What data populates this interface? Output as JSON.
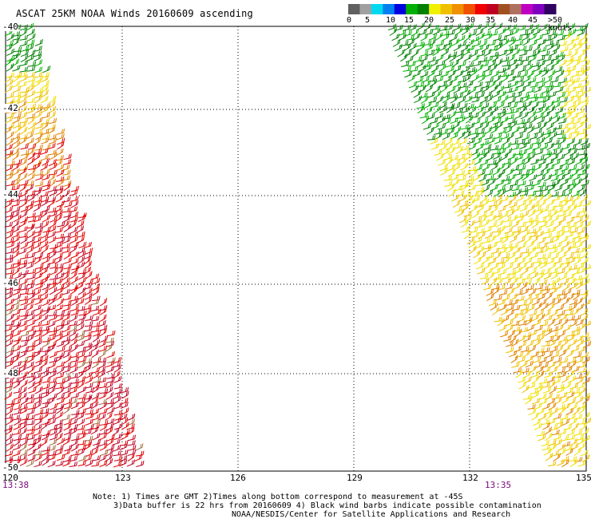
{
  "title": "ASCAT 25KM NOAA Winds 20160609 ascending",
  "legend": {
    "colors": [
      "#606060",
      "#a0a0a0",
      "#00d8f0",
      "#0080f0",
      "#0000e0",
      "#00b000",
      "#008000",
      "#f0f000",
      "#f0c000",
      "#f09000",
      "#f05000",
      "#f00000",
      "#c00020",
      "#a05020",
      "#b07060",
      "#c000c0",
      "#8000c0",
      "#300060"
    ],
    "labels": [
      "0",
      "5",
      "10",
      "15",
      "20",
      "25",
      "30",
      "35",
      "40",
      "45",
      ">50 knots"
    ]
  },
  "axes": {
    "lon_labels": [
      "120",
      "123",
      "126",
      "129",
      "132",
      "135"
    ],
    "lat_labels": [
      "-40",
      "-42",
      "-44",
      "-46",
      "-48",
      "-50"
    ]
  },
  "times": {
    "left": "13:38",
    "right": "13:35"
  },
  "notes": {
    "line1": "Note: 1) Times are GMT 2)Times along bottom correspond to measurement at -45S",
    "line2": "3)Data buffer is 22 hrs from 20160609 4) Black wind barbs indicate possible contamination",
    "line3": "NOAA/NESDIS/Center for Satellite Applications and Research"
  },
  "swath_colors": {
    "green": "#008000",
    "light_green": "#00b000",
    "yellow": "#f0e000",
    "gold": "#f0c000",
    "orange": "#e08000",
    "red": "#e00000",
    "dark_red": "#c00020",
    "brown": "#a07040"
  }
}
